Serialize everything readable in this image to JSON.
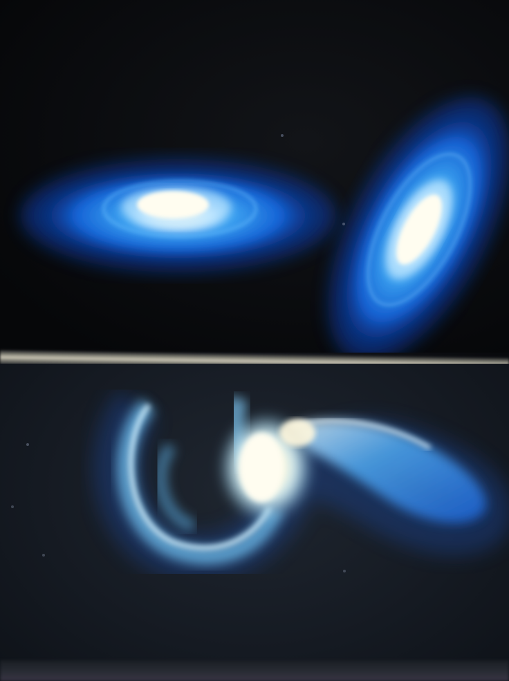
{
  "photo": {
    "description_type": "blurry photo of a screen showing galaxy simulation",
    "top_panel_galaxies": 2,
    "bottom_panel_galaxies": 1
  },
  "colors": {
    "galaxy_outer": "#1e6fe0",
    "galaxy_mid": "#3fa8f5",
    "galaxy_core": "#fffbe8",
    "background_top": "#07080b",
    "background_bottom": "#1a2029",
    "divider": "#c9c5b4"
  }
}
